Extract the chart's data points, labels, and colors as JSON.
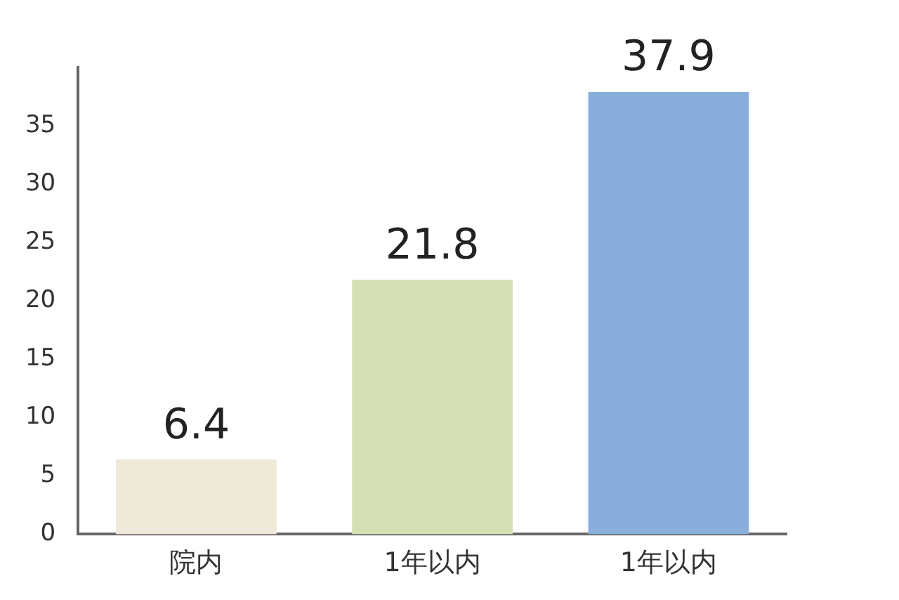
{
  "chart_data": {
    "type": "bar",
    "categories": [
      "院内",
      "1年以内",
      "1年以内"
    ],
    "values": [
      6.4,
      21.8,
      37.9
    ],
    "colors": [
      "#efe9da",
      "#d5e0b5",
      "#8aaedc"
    ],
    "ylim": [
      0,
      40
    ],
    "yticks": [
      0,
      5,
      10,
      15,
      20,
      25,
      30,
      35
    ],
    "data_labels": true,
    "grid": false,
    "legend": false
  }
}
